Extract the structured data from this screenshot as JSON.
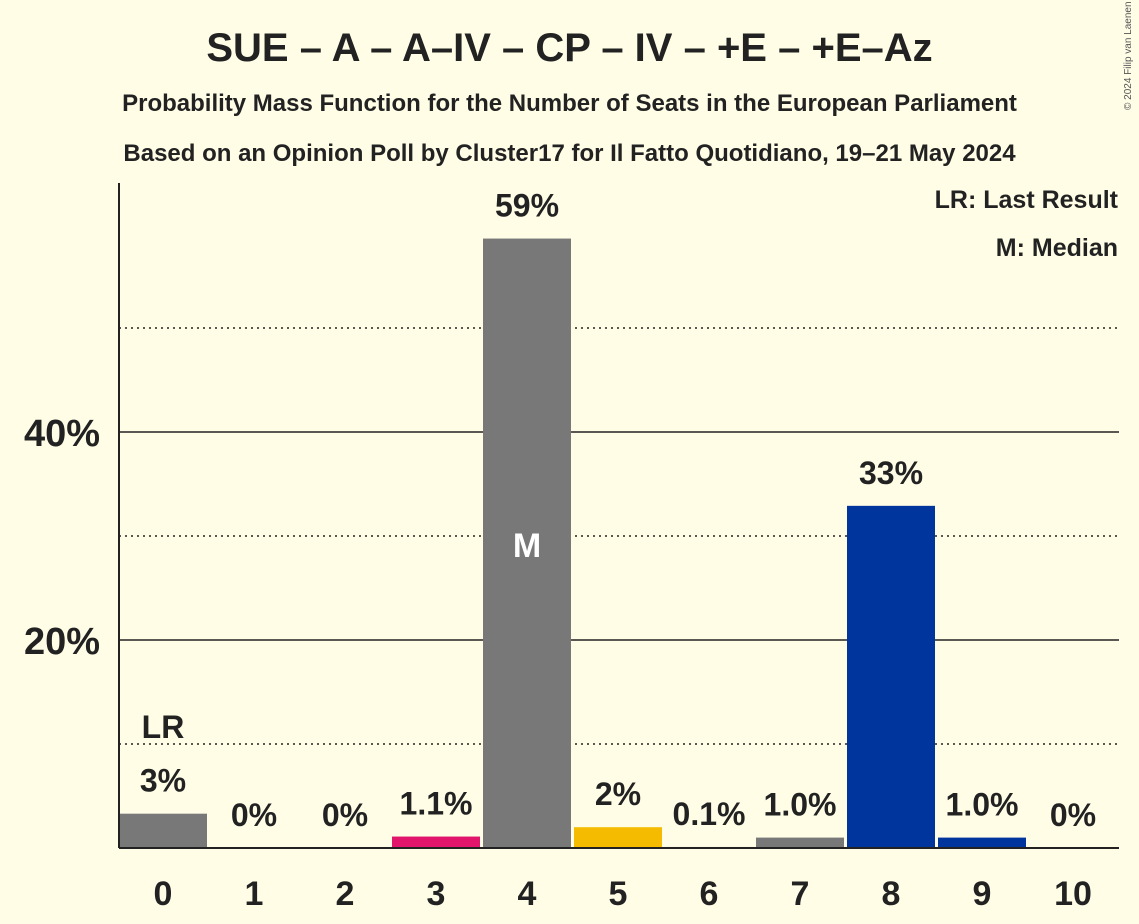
{
  "title": "SUE – A – A–IV – CP – IV – +E – +E–Az",
  "subtitle1": "Probability Mass Function for the Number of Seats in the European Parliament",
  "subtitle2": "Based on an Opinion Poll by Cluster17 for Il Fatto Quotidiano, 19–21 May 2024",
  "copyright": "© 2024 Filip van Laenen",
  "legend": {
    "last_result": "LR: Last Result",
    "median": "M: Median"
  },
  "chart_data": {
    "type": "bar",
    "categories": [
      "0",
      "1",
      "2",
      "3",
      "4",
      "5",
      "6",
      "7",
      "8",
      "9",
      "10"
    ],
    "values": [
      3.3,
      0,
      0,
      1.1,
      58.6,
      2.0,
      0.1,
      1.0,
      32.9,
      1.0,
      0
    ],
    "value_labels": [
      "3%",
      "0%",
      "0%",
      "1.1%",
      "59%",
      "2%",
      "0.1%",
      "1.0%",
      "33%",
      "1.0%",
      "0%"
    ],
    "bar_colors": [
      "#787878",
      "#787878",
      "#787878",
      "#e0156b",
      "#787878",
      "#f5bb00",
      "#787878",
      "#787878",
      "#00359e",
      "#00359e",
      "#787878"
    ],
    "y_ticks": [
      "20%",
      "40%"
    ],
    "y_tick_values": [
      20,
      40
    ],
    "y_dotted_values": [
      10,
      30,
      50
    ],
    "ylim": [
      0,
      64
    ],
    "last_result_index": 0,
    "last_result_label": "LR",
    "median_index": 4,
    "median_label": "M",
    "grid": true
  }
}
